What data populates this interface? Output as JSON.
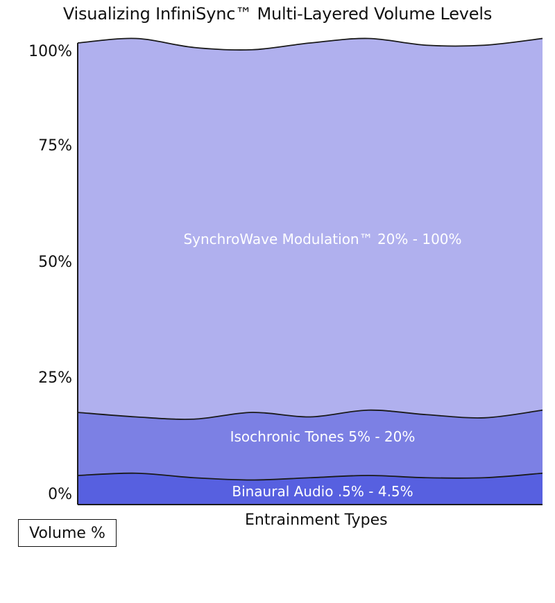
{
  "chart_data": {
    "type": "area",
    "title": "Visualizing InfiniSync™ Multi-Layered Volume Levels",
    "xlabel": "Entrainment Types",
    "ylabel": "Volume %",
    "ylim": [
      0,
      100
    ],
    "y_ticks": [
      "0%",
      "25%",
      "50%",
      "75%",
      "100%"
    ],
    "y_tick_values": [
      0,
      25,
      50,
      75,
      100
    ],
    "grid": false,
    "series": [
      {
        "name": "Binaural Audio .5% - 4.5%",
        "color": "#5760e0",
        "lower": [
          0,
          0,
          0,
          0,
          0,
          0,
          0,
          0,
          0
        ],
        "upper": [
          4,
          4.5,
          3.5,
          3,
          3.5,
          4,
          3.5,
          3.5,
          4.5
        ]
      },
      {
        "name": "Isochronic Tones 5% - 20%",
        "color": "#7c80e4",
        "lower": [
          4,
          4.5,
          3.5,
          3,
          3.5,
          4,
          3.5,
          3.5,
          4.5
        ],
        "upper": [
          18,
          17,
          16.5,
          18,
          17,
          18.5,
          17.5,
          16.8,
          18.5
        ]
      },
      {
        "name": "SynchroWave Modulation™ 20% - 100%",
        "color": "#b0b0ee",
        "lower": [
          18,
          17,
          16.5,
          18,
          17,
          18.5,
          17.5,
          16.8,
          18.5
        ],
        "upper": [
          100,
          101,
          99,
          98.5,
          100,
          101,
          99.5,
          99.5,
          101
        ]
      }
    ],
    "x_points": 9
  }
}
